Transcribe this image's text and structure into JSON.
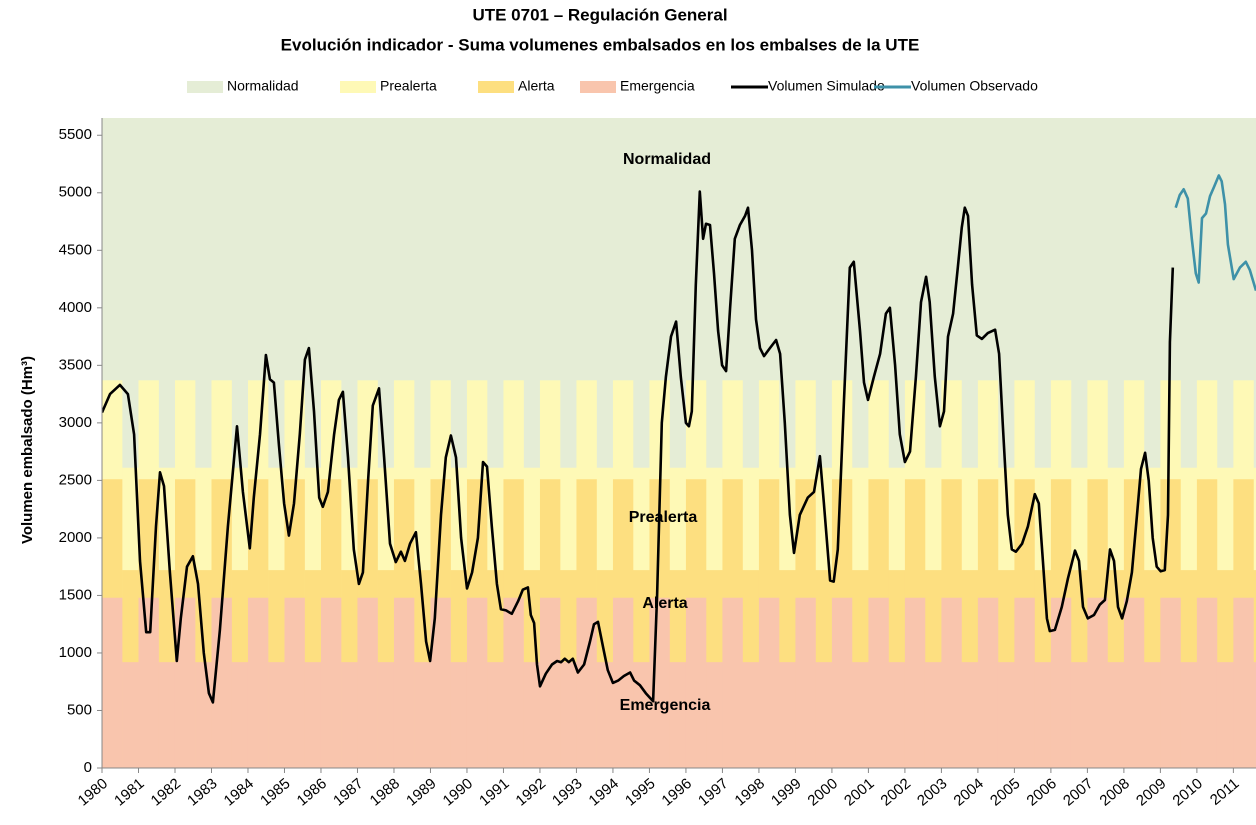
{
  "chart_data": {
    "type": "line",
    "title": "UTE 0701 – Regulación General",
    "subtitle": "Evolución indicador - Suma volumenes embalsados en los embalses de la UTE",
    "y_label": "Volumen embalsado (Hm³)",
    "xlim": [
      1980,
      2011.62
    ],
    "xticks": [
      1980,
      1981,
      1982,
      1983,
      1984,
      1985,
      1986,
      1987,
      1988,
      1989,
      1990,
      1991,
      1992,
      1993,
      1994,
      1995,
      1996,
      1997,
      1998,
      1999,
      2000,
      2001,
      2002,
      2003,
      2004,
      2005,
      2006,
      2007,
      2008,
      2009,
      2010,
      2011
    ],
    "ylim": [
      0,
      5650
    ],
    "yticks": [
      0,
      500,
      1000,
      1500,
      2000,
      2500,
      3000,
      3500,
      4000,
      4500,
      5000,
      5500
    ],
    "phase_starts": [
      0,
      0.55
    ],
    "zones": [
      {
        "name": "Normalidad",
        "color": "#E5EDD6"
      },
      {
        "name": "Prealerta",
        "color": "#FEF9B6",
        "upper": [
          3370,
          2610
        ]
      },
      {
        "name": "Alerta",
        "color": "#FDDF80",
        "upper": [
          2510,
          1720
        ]
      },
      {
        "name": "Emergencia",
        "color": "#F9C5AD",
        "upper": [
          1480,
          920
        ]
      }
    ],
    "series": [
      {
        "name": "Volumen Simulado",
        "color": "#000000",
        "x": [
          1980.0,
          1980.22,
          1980.49,
          1980.71,
          1980.88,
          1981.04,
          1981.21,
          1981.32,
          1981.48,
          1981.59,
          1981.7,
          1981.86,
          1982.05,
          1982.16,
          1982.33,
          1982.49,
          1982.63,
          1982.79,
          1982.93,
          1983.04,
          1983.23,
          1983.45,
          1983.7,
          1983.86,
          1984.05,
          1984.16,
          1984.33,
          1984.49,
          1984.6,
          1984.71,
          1984.85,
          1984.99,
          1985.12,
          1985.26,
          1985.42,
          1985.56,
          1985.67,
          1985.81,
          1985.95,
          1986.05,
          1986.19,
          1986.36,
          1986.49,
          1986.6,
          1986.74,
          1986.9,
          1987.04,
          1987.15,
          1987.29,
          1987.42,
          1987.59,
          1987.73,
          1987.89,
          1988.05,
          1988.19,
          1988.3,
          1988.44,
          1988.6,
          1988.74,
          1988.88,
          1988.99,
          1989.12,
          1989.29,
          1989.42,
          1989.56,
          1989.7,
          1989.84,
          1990.0,
          1990.14,
          1990.3,
          1990.44,
          1990.55,
          1990.68,
          1990.82,
          1990.93,
          1991.07,
          1991.23,
          1991.4,
          1991.53,
          1991.67,
          1991.75,
          1991.84,
          1991.92,
          1992.0,
          1992.16,
          1992.33,
          1992.47,
          1992.58,
          1992.68,
          1992.79,
          1992.9,
          1993.04,
          1993.21,
          1993.37,
          1993.48,
          1993.59,
          1993.73,
          1993.86,
          1994.0,
          1994.14,
          1994.3,
          1994.47,
          1994.58,
          1994.74,
          1994.9,
          1995.1,
          1995.21,
          1995.34,
          1995.45,
          1995.59,
          1995.73,
          1995.86,
          1996.0,
          1996.08,
          1996.16,
          1996.27,
          1996.38,
          1996.47,
          1996.55,
          1996.66,
          1996.77,
          1996.88,
          1996.99,
          1997.1,
          1997.21,
          1997.34,
          1997.48,
          1997.62,
          1997.7,
          1997.81,
          1997.92,
          1998.03,
          1998.14,
          1998.3,
          1998.47,
          1998.58,
          1998.71,
          1998.85,
          1998.96,
          1999.12,
          1999.34,
          1999.51,
          1999.67,
          1999.78,
          1999.95,
          2000.05,
          2000.16,
          2000.33,
          2000.49,
          2000.6,
          2000.77,
          2000.88,
          2000.99,
          2001.15,
          2001.32,
          2001.48,
          2001.59,
          2001.73,
          2001.86,
          2002.0,
          2002.14,
          2002.3,
          2002.44,
          2002.58,
          2002.68,
          2002.82,
          2002.96,
          2003.07,
          2003.18,
          2003.32,
          2003.45,
          2003.56,
          2003.64,
          2003.73,
          2003.84,
          2003.97,
          2004.11,
          2004.27,
          2004.47,
          2004.58,
          2004.68,
          2004.82,
          2004.93,
          2005.04,
          2005.21,
          2005.37,
          2005.56,
          2005.67,
          2005.78,
          2005.89,
          2005.97,
          2006.11,
          2006.3,
          2006.47,
          2006.66,
          2006.77,
          2006.88,
          2007.01,
          2007.18,
          2007.34,
          2007.48,
          2007.62,
          2007.73,
          2007.84,
          2007.95,
          2008.08,
          2008.22,
          2008.36,
          2008.47,
          2008.58,
          2008.68,
          2008.79,
          2008.9,
          2009.01,
          2009.12,
          2009.21,
          2009.26,
          2009.34
        ],
        "values": [
          3090,
          3250,
          3330,
          3250,
          2900,
          1800,
          1180,
          1180,
          2100,
          2570,
          2450,
          1700,
          930,
          1300,
          1750,
          1840,
          1600,
          1000,
          650,
          570,
          1200,
          2100,
          2970,
          2400,
          1910,
          2350,
          2900,
          3590,
          3380,
          3350,
          2800,
          2300,
          2020,
          2300,
          2900,
          3550,
          3650,
          3100,
          2350,
          2270,
          2400,
          2900,
          3200,
          3270,
          2700,
          1900,
          1600,
          1700,
          2500,
          3150,
          3300,
          2700,
          1950,
          1790,
          1880,
          1800,
          1950,
          2050,
          1600,
          1100,
          930,
          1300,
          2200,
          2700,
          2890,
          2700,
          2000,
          1560,
          1700,
          2000,
          2660,
          2620,
          2100,
          1600,
          1380,
          1370,
          1340,
          1450,
          1550,
          1570,
          1330,
          1260,
          900,
          710,
          820,
          900,
          930,
          920,
          950,
          920,
          950,
          830,
          900,
          1100,
          1250,
          1270,
          1050,
          850,
          740,
          760,
          800,
          830,
          760,
          720,
          650,
          580,
          1500,
          3000,
          3400,
          3750,
          3880,
          3400,
          3000,
          2970,
          3100,
          4200,
          5010,
          4600,
          4730,
          4720,
          4300,
          3800,
          3500,
          3450,
          4000,
          4600,
          4720,
          4800,
          4870,
          4500,
          3900,
          3650,
          3580,
          3650,
          3720,
          3600,
          3000,
          2200,
          1870,
          2200,
          2350,
          2400,
          2710,
          2300,
          1630,
          1620,
          1900,
          3200,
          4350,
          4400,
          3800,
          3350,
          3200,
          3400,
          3600,
          3950,
          4000,
          3500,
          2900,
          2660,
          2750,
          3400,
          4050,
          4270,
          4050,
          3400,
          2970,
          3100,
          3750,
          3950,
          4350,
          4700,
          4870,
          4800,
          4200,
          3760,
          3730,
          3780,
          3810,
          3600,
          3000,
          2200,
          1900,
          1880,
          1950,
          2100,
          2380,
          2300,
          1800,
          1300,
          1190,
          1200,
          1400,
          1650,
          1890,
          1800,
          1400,
          1300,
          1330,
          1420,
          1460,
          1900,
          1800,
          1400,
          1300,
          1450,
          1700,
          2200,
          2600,
          2740,
          2500,
          2000,
          1750,
          1710,
          1720,
          2200,
          3700,
          4350
        ]
      },
      {
        "name": "Volumen Observado",
        "color": "#3E91A8",
        "x": [
          2009.42,
          2009.53,
          2009.64,
          2009.75,
          2009.86,
          2009.97,
          2010.05,
          2010.14,
          2010.25,
          2010.36,
          2010.47,
          2010.6,
          2010.68,
          2010.77,
          2010.85,
          2011.01,
          2011.18,
          2011.34,
          2011.45,
          2011.62
        ],
        "values": [
          4870,
          4980,
          5030,
          4950,
          4600,
          4300,
          4220,
          4780,
          4820,
          4970,
          5050,
          5150,
          5100,
          4900,
          4550,
          4250,
          4350,
          4400,
          4330,
          4150
        ]
      }
    ]
  }
}
